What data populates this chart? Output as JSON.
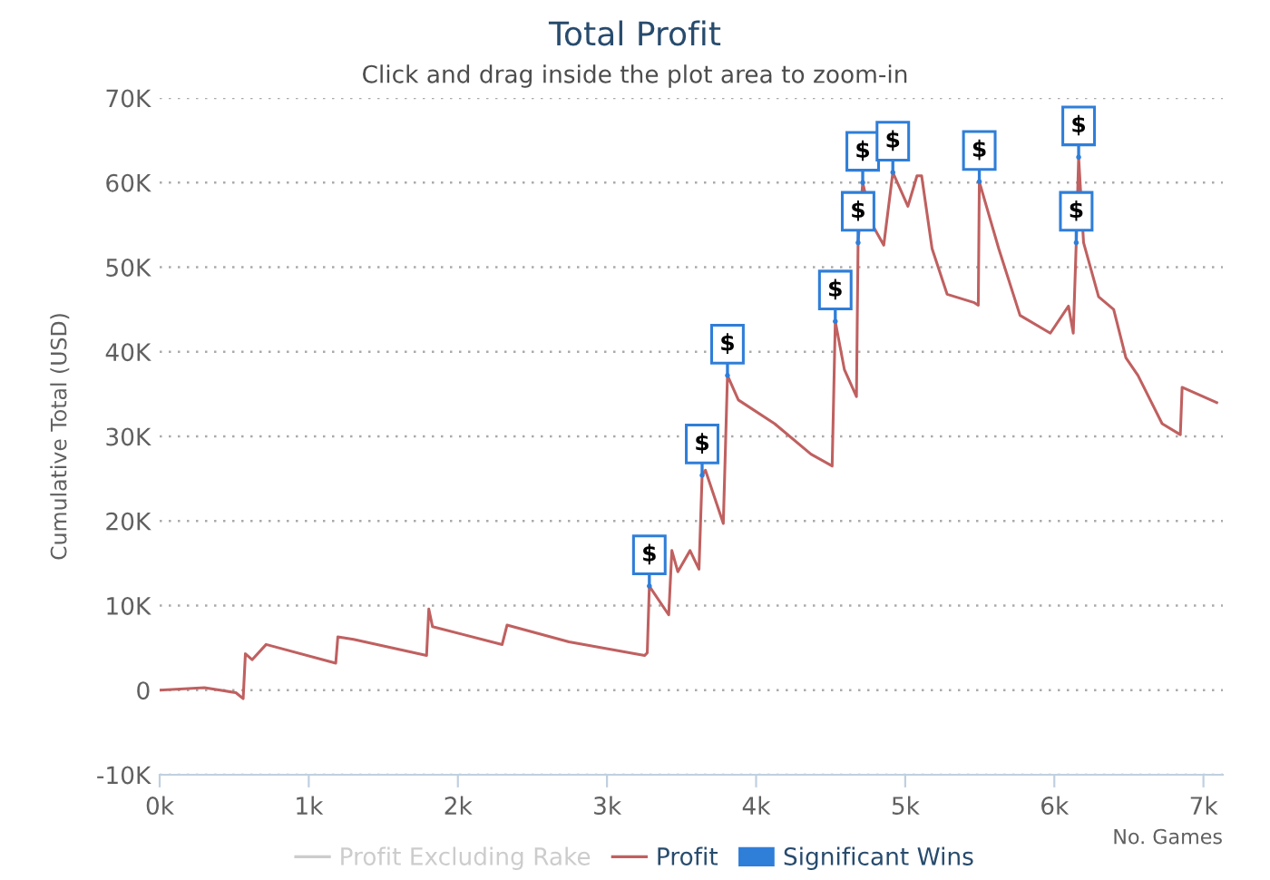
{
  "chart_data": {
    "type": "line",
    "title": "Total Profit",
    "subtitle": "Click and drag inside the plot area to zoom-in",
    "xlabel": "No. Games",
    "ylabel": "Cumulative Total (USD)",
    "xlim": [
      0,
      7130
    ],
    "ylim": [
      -10000,
      70000
    ],
    "xticks": [
      {
        "value": 0,
        "label": "0k"
      },
      {
        "value": 1000,
        "label": "1k"
      },
      {
        "value": 2000,
        "label": "2k"
      },
      {
        "value": 3000,
        "label": "3k"
      },
      {
        "value": 4000,
        "label": "4k"
      },
      {
        "value": 5000,
        "label": "5k"
      },
      {
        "value": 6000,
        "label": "6k"
      },
      {
        "value": 7000,
        "label": "7k"
      }
    ],
    "yticks": [
      {
        "value": -10000,
        "label": "-10K"
      },
      0,
      {
        "value": 10000,
        "label": "10K"
      },
      {
        "value": 20000,
        "label": "20K"
      },
      {
        "value": 30000,
        "label": "30K"
      },
      {
        "value": 40000,
        "label": "40K"
      },
      {
        "value": 50000,
        "label": "50K"
      },
      {
        "value": 60000,
        "label": "60K"
      },
      {
        "value": 70000,
        "label": "70K"
      }
    ],
    "grid": "y",
    "legend": "bottom",
    "marker": "none",
    "line_style": "solid",
    "series": [
      {
        "name": "Profit Excluding Rake",
        "color": "#cccccc"
      },
      {
        "name": "Profit",
        "color": "#c06060",
        "x": [
          0,
          300,
          511,
          560,
          575,
          620,
          714,
          1181,
          1195,
          1300,
          1790,
          1805,
          1830,
          2297,
          2330,
          2745,
          3252,
          3270,
          3284,
          3414,
          3435,
          3475,
          3557,
          3617,
          3638,
          3660,
          3780,
          3808,
          3881,
          4124,
          4368,
          4510,
          4531,
          4592,
          4673,
          4684,
          4715,
          4780,
          4856,
          4917,
          5018,
          5079,
          5110,
          5180,
          5281,
          5464,
          5490,
          5497,
          5627,
          5770,
          5973,
          6095,
          6127,
          6147,
          6163,
          6196,
          6297,
          6398,
          6480,
          6561,
          6723,
          6845,
          6857,
          7089
        ],
        "values": [
          0,
          300,
          -300,
          -1000,
          4300,
          3600,
          5400,
          3200,
          6300,
          6000,
          4100,
          9600,
          7500,
          5400,
          7700,
          5700,
          4100,
          4400,
          12300,
          8900,
          16500,
          14000,
          16500,
          14300,
          25400,
          26000,
          19700,
          37200,
          34300,
          31500,
          27900,
          26500,
          43600,
          37900,
          34700,
          52900,
          60000,
          55000,
          52600,
          61200,
          57200,
          60800,
          60800,
          52200,
          46800,
          45800,
          45500,
          60100,
          52200,
          44300,
          42200,
          45400,
          42200,
          52900,
          63000,
          52900,
          46500,
          45000,
          39300,
          37200,
          31500,
          30200,
          35800,
          34000
        ]
      },
      {
        "name": "Significant Wins",
        "type": "scatter",
        "color": "#2f7ed8",
        "x": [
          3284,
          3638,
          3808,
          4531,
          4684,
          4715,
          4917,
          5497,
          6147,
          6163
        ],
        "values": [
          12300,
          25400,
          37200,
          43600,
          52900,
          60000,
          61200,
          60100,
          52900,
          63000
        ],
        "value_labels": [
          "$",
          "$",
          "$",
          "$",
          "$",
          "$",
          "$",
          "$",
          "$",
          "$"
        ]
      }
    ]
  }
}
